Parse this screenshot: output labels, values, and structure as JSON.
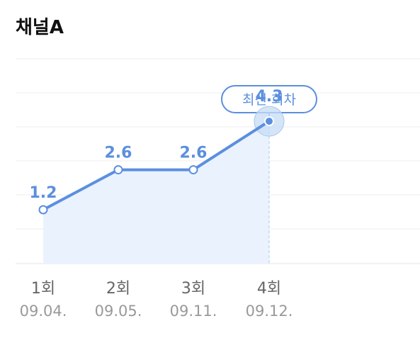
{
  "header": {
    "title": "채널A"
  },
  "colors": {
    "accent": "#5b8fdf",
    "area": "#eaf2fd",
    "grid": "#eeeeee",
    "highlight": "#c6dcf6",
    "category_text": "#666666",
    "date_text": "#999999"
  },
  "chart_data": {
    "type": "line",
    "categories": [
      "1회",
      "2회",
      "3회",
      "4회"
    ],
    "dates": [
      "09.04.",
      "09.05.",
      "09.11.",
      "09.12."
    ],
    "values": [
      1.2,
      2.6,
      2.6,
      4.3
    ],
    "data_labels": [
      "1.2",
      "2.6",
      "2.6",
      "4.3"
    ],
    "highlight_index": 3,
    "annotation": "최신 회차",
    "grid": true,
    "area_fill": true
  }
}
